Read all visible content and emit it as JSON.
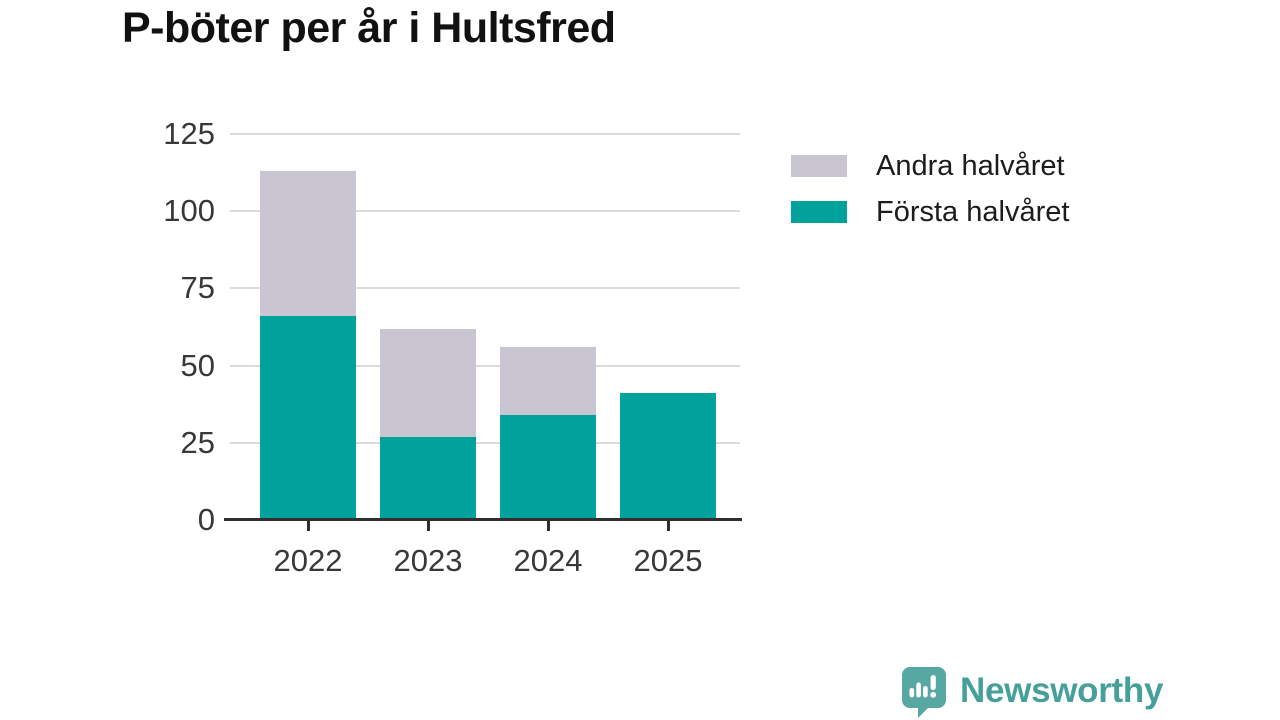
{
  "chart_data": {
    "type": "bar",
    "stacked": true,
    "title": "P-böter per år i Hultsfred",
    "categories": [
      "2022",
      "2023",
      "2024",
      "2025"
    ],
    "series": [
      {
        "name": "Första halvåret",
        "color": "#00a29b",
        "values": [
          66,
          27,
          34,
          41
        ]
      },
      {
        "name": "Andra halvåret",
        "color": "#c9c6d2",
        "values": [
          47,
          35,
          22,
          0
        ]
      }
    ],
    "stack_totals": [
      113,
      62,
      56,
      41
    ],
    "xlabel": "",
    "ylabel": "",
    "ylim": [
      0,
      125
    ],
    "yticks": [
      0,
      25,
      50,
      75,
      100,
      125
    ],
    "grid": true,
    "legend_position": "right",
    "legend_order_top_to_bottom": [
      "Andra halvåret",
      "Första halvåret"
    ]
  },
  "colors": {
    "first_half_teal": "#00a29b",
    "second_half_gray": "#c9c6d2",
    "axis_text": "#383838",
    "gridline": "#dadada",
    "axis_line": "#2f2f2f",
    "title_text": "#111111",
    "logo_icon_teal": "#57a7a2",
    "logo_text_teal": "#459f9b",
    "background": "#ffffff"
  },
  "footer": {
    "brand": "Newsworthy"
  }
}
